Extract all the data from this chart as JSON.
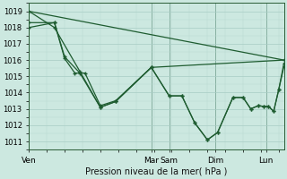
{
  "xlabel": "Pression niveau de la mer( hPa )",
  "ylim": [
    1010.5,
    1019.5
  ],
  "xlim": [
    0,
    100
  ],
  "yticks": [
    1011,
    1012,
    1013,
    1014,
    1015,
    1016,
    1017,
    1018,
    1019
  ],
  "day_labels": [
    "Ven",
    "Mar",
    "Sam",
    "Dim",
    "Lun"
  ],
  "day_x": [
    0,
    48,
    55,
    73,
    93
  ],
  "bg_color": "#cce8e0",
  "grid_major_color": "#a8ccc4",
  "grid_minor_color": "#b8d8d0",
  "line_color": "#1e5c30",
  "line1": [
    [
      0,
      1019.0
    ],
    [
      100,
      1016.0
    ]
  ],
  "line2": [
    [
      0,
      1019.0
    ],
    [
      10,
      1018.0
    ],
    [
      20,
      1015.3
    ],
    [
      28,
      1013.1
    ],
    [
      34,
      1013.45
    ],
    [
      48,
      1015.55
    ],
    [
      55,
      1013.8
    ],
    [
      60,
      1013.8
    ],
    [
      65,
      1012.15
    ],
    [
      70,
      1011.1
    ],
    [
      74,
      1011.55
    ],
    [
      80,
      1013.7
    ],
    [
      84,
      1013.7
    ],
    [
      87,
      1013.0
    ],
    [
      90,
      1013.2
    ],
    [
      92,
      1013.15
    ],
    [
      94,
      1013.15
    ],
    [
      96,
      1012.85
    ],
    [
      98,
      1014.2
    ],
    [
      100,
      1015.6
    ]
  ],
  "line3": [
    [
      0,
      1018.0
    ],
    [
      10,
      1018.3
    ],
    [
      14,
      1016.2
    ],
    [
      20,
      1015.2
    ],
    [
      28,
      1013.1
    ],
    [
      34,
      1013.45
    ],
    [
      48,
      1015.55
    ],
    [
      55,
      1013.8
    ],
    [
      60,
      1013.8
    ],
    [
      65,
      1012.15
    ],
    [
      70,
      1011.1
    ],
    [
      74,
      1011.55
    ],
    [
      80,
      1013.7
    ],
    [
      84,
      1013.7
    ],
    [
      87,
      1013.0
    ],
    [
      90,
      1013.2
    ],
    [
      92,
      1013.15
    ],
    [
      94,
      1013.15
    ],
    [
      96,
      1012.85
    ],
    [
      98,
      1014.2
    ],
    [
      100,
      1015.8
    ]
  ],
  "line4": [
    [
      0,
      1018.3
    ],
    [
      10,
      1018.3
    ],
    [
      14,
      1016.1
    ],
    [
      18,
      1015.2
    ],
    [
      22,
      1015.2
    ],
    [
      28,
      1013.2
    ],
    [
      34,
      1013.5
    ],
    [
      48,
      1015.55
    ],
    [
      100,
      1016.0
    ]
  ]
}
